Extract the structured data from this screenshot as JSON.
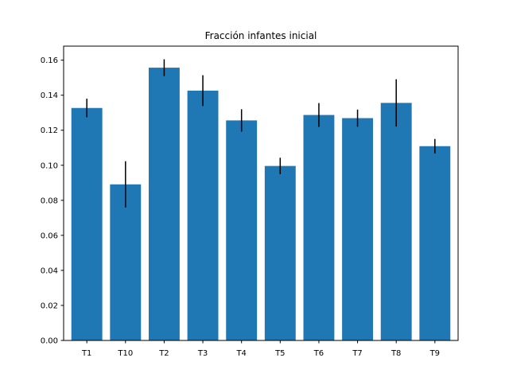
{
  "chart_data": {
    "type": "bar",
    "title": "Fracción infantes inicial",
    "xlabel": "",
    "ylabel": "",
    "categories": [
      "T1",
      "T10",
      "T2",
      "T3",
      "T4",
      "T5",
      "T6",
      "T7",
      "T8",
      "T9"
    ],
    "values": [
      0.1327,
      0.0891,
      0.1557,
      0.1426,
      0.1256,
      0.0996,
      0.1287,
      0.1269,
      0.1356,
      0.1109
    ],
    "errors": [
      0.0053,
      0.0132,
      0.0048,
      0.0088,
      0.0064,
      0.0047,
      0.0068,
      0.0049,
      0.0135,
      0.0041
    ],
    "ylim": [
      0,
      0.168
    ],
    "yticks": [
      0.0,
      0.02,
      0.04,
      0.06,
      0.08,
      0.1,
      0.12,
      0.14,
      0.16
    ],
    "ytick_labels": [
      "0.00",
      "0.02",
      "0.04",
      "0.06",
      "0.08",
      "0.10",
      "0.12",
      "0.14",
      "0.16"
    ],
    "grid": false,
    "legend": "none",
    "colors": {
      "bar": "#1f77b4",
      "error": "#000000",
      "axis": "#000000",
      "background": "#ffffff"
    }
  }
}
